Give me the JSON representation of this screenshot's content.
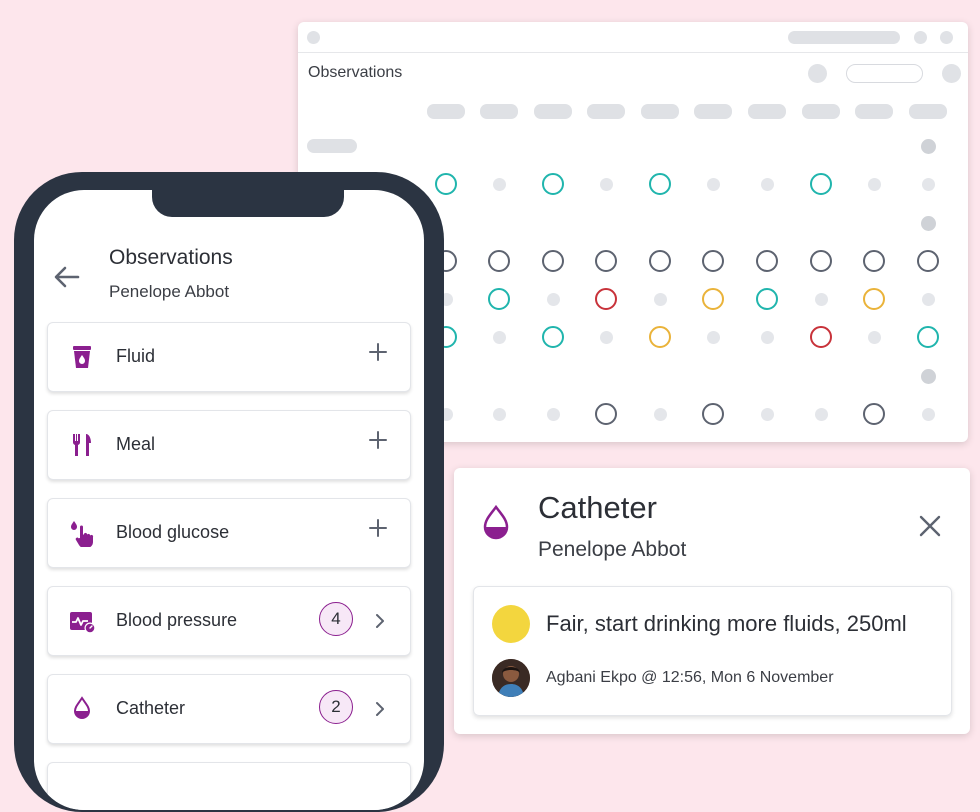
{
  "colors": {
    "brand": "#8b1f8f",
    "teal": "#20b5ad",
    "red": "#c8323a",
    "amber": "#eab33a",
    "grey_ring": "#5d6370",
    "status_fair": "#f3d63e",
    "background": "#fde6ec"
  },
  "desktop": {
    "title": "Observations",
    "grid_rows": [
      {
        "cells": [
          "none",
          "none",
          "none",
          "none",
          "none",
          "none",
          "none",
          "none",
          "none",
          "none",
          "none",
          "dark"
        ]
      },
      {
        "cells": [
          "none",
          "none",
          "teal",
          "dot",
          "teal",
          "dot",
          "teal",
          "dot",
          "dot",
          "teal",
          "dot",
          "dot"
        ]
      },
      {
        "cells": [
          "none",
          "none",
          "none",
          "none",
          "none",
          "none",
          "none",
          "none",
          "none",
          "none",
          "none",
          "dark"
        ]
      },
      {
        "cells": [
          "none",
          "none",
          "grey",
          "grey",
          "grey",
          "grey",
          "grey",
          "grey",
          "grey",
          "grey",
          "grey",
          "grey"
        ]
      },
      {
        "cells": [
          "none",
          "none",
          "dot",
          "teal",
          "dot",
          "red",
          "dot",
          "amber",
          "teal",
          "dot",
          "amber",
          "dot"
        ]
      },
      {
        "cells": [
          "none",
          "none",
          "teal",
          "dot",
          "teal",
          "dot",
          "amber",
          "dot",
          "dot",
          "red",
          "dot",
          "teal"
        ]
      },
      {
        "cells": [
          "none",
          "none",
          "none",
          "none",
          "none",
          "none",
          "none",
          "none",
          "none",
          "none",
          "none",
          "dark"
        ]
      },
      {
        "cells": [
          "none",
          "none",
          "dot",
          "dot",
          "dot",
          "grey",
          "dot",
          "grey",
          "dot",
          "dot",
          "grey",
          "dot"
        ]
      }
    ]
  },
  "mobile": {
    "title": "Observations",
    "patient": "Penelope Abbot",
    "items": [
      {
        "label": "Fluid",
        "icon": "fluid-cup-icon",
        "action": "add"
      },
      {
        "label": "Meal",
        "icon": "cutlery-icon",
        "action": "add"
      },
      {
        "label": "Blood glucose",
        "icon": "finger-drop-icon",
        "action": "add"
      },
      {
        "label": "Blood pressure",
        "icon": "blood-pressure-icon",
        "count": "4",
        "action": "open"
      },
      {
        "label": "Catheter",
        "icon": "drop-icon",
        "count": "2",
        "action": "open"
      }
    ]
  },
  "detail": {
    "title": "Catheter",
    "patient": "Penelope Abbot",
    "icon": "drop-icon",
    "entry": {
      "text": "Fair, start drinking more fluids, 250ml",
      "status": "fair",
      "meta": "Agbani Ekpo @ 12:56, Mon 6 November"
    }
  }
}
